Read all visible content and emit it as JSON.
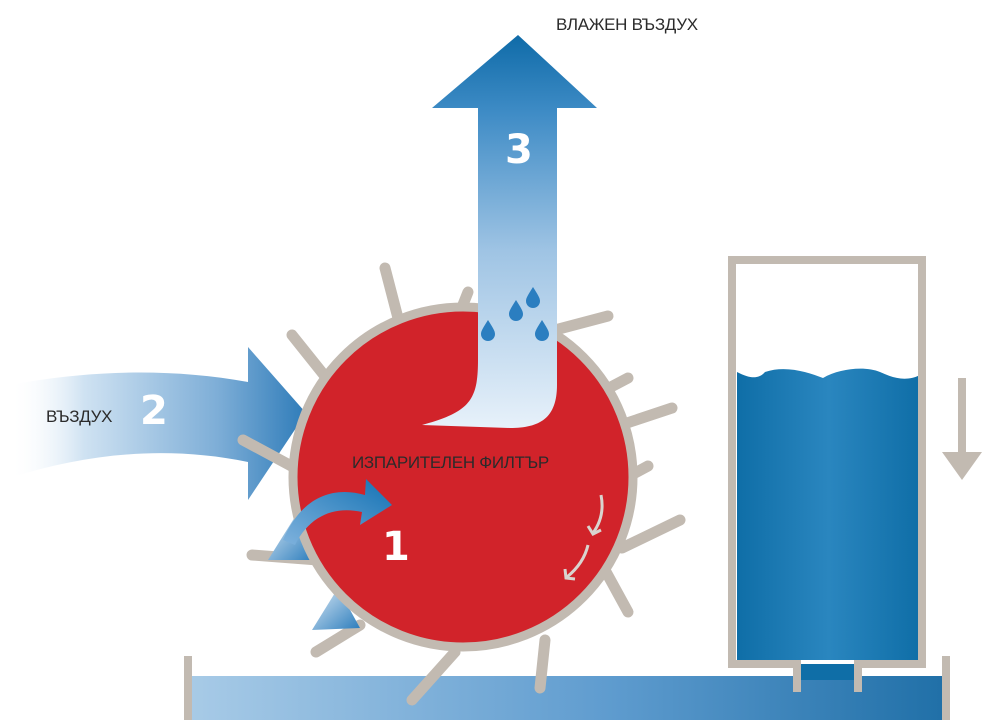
{
  "labels": {
    "humid_air": "ВЛАЖЕН ВЪЗДУХ",
    "air": "ВЪЗДУХ",
    "filter": "ИЗПАРИТЕЛЕН ФИЛТЪР"
  },
  "steps": {
    "one": "1",
    "two": "2",
    "three": "3"
  },
  "colors": {
    "filter_red": "#d1232a",
    "frame_gray": "#c2bab1",
    "water_blue": "#0e6ea6",
    "air_light_blue": "#a9cbe6"
  },
  "icons": [
    "water-drop-icon",
    "rotation-arrow-icon",
    "down-arrow-icon"
  ]
}
